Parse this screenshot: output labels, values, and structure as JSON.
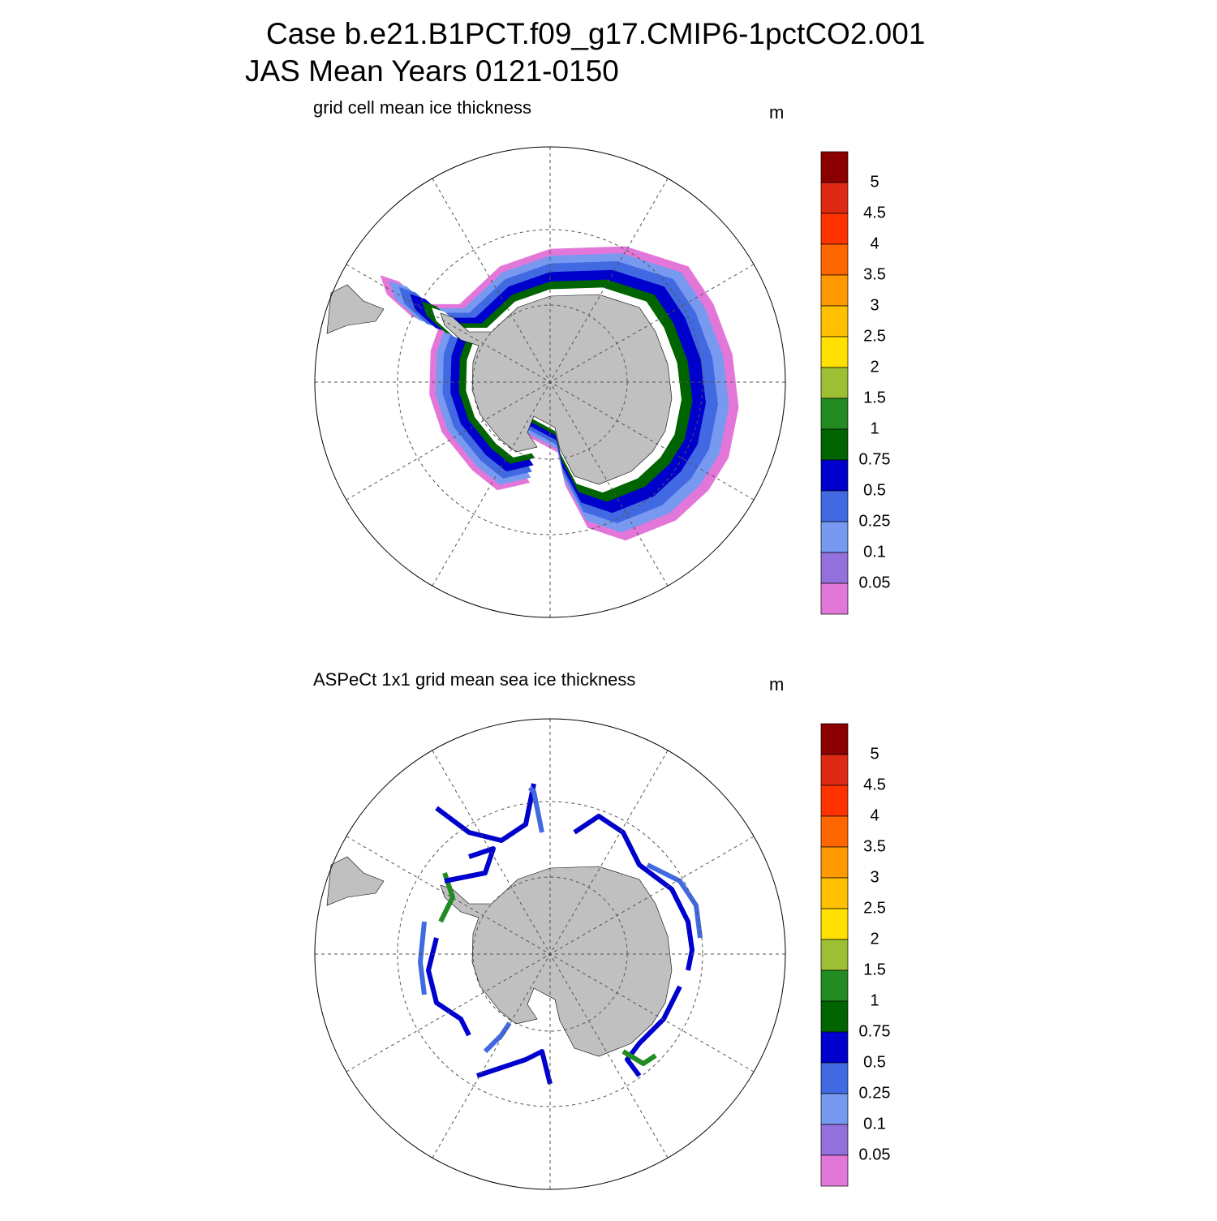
{
  "title": [
    "Case b.e21.B1PCT.f09_g17.CMIP6-1pctCO2.001",
    "JAS Mean   Years 0121-0150"
  ],
  "panels": [
    {
      "subtitle": "grid cell mean ice thickness",
      "units": "m"
    },
    {
      "subtitle": "ASPeCt 1x1 grid mean sea ice thickness",
      "units": "m"
    }
  ],
  "colorbar": {
    "levels": [
      5,
      4.5,
      4,
      3.5,
      3,
      2.5,
      2,
      1.5,
      1,
      0.75,
      0.5,
      0.25,
      0.1,
      0.05
    ],
    "colors": [
      "#8b0000",
      "#de2a14",
      "#ff3300",
      "#ff6600",
      "#ff9900",
      "#ffc000",
      "#ffe000",
      "#9cbf34",
      "#228b22",
      "#006400",
      "#0000cd",
      "#4169e1",
      "#7799f0",
      "#9370db",
      "#e377d9"
    ]
  }
}
